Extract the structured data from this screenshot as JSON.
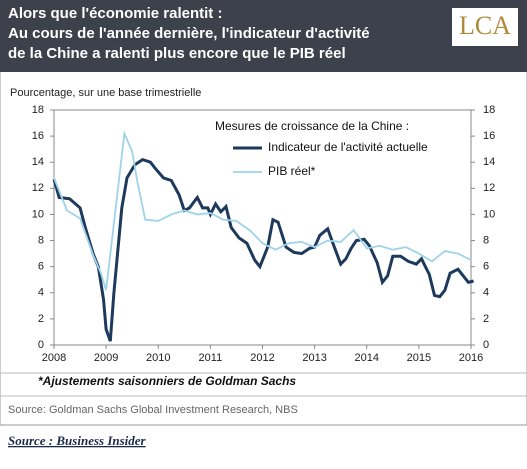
{
  "logo": "LCA",
  "chart_data": {
    "type": "line",
    "title": [
      "Alors que l'économie ralentit :",
      "Au cours de l'année dernière, l'indicateur d'activité",
      "de la Chine a ralenti plus encore que le PIB réel"
    ],
    "subtitle": "Pourcentage, sur une base trimestrielle",
    "legend_title": "Mesures de croissance de la Chine :",
    "footnote": "*Ajustements saisonniers de Goldman Sachs",
    "source": "Source: Goldman Sachs Global Investment Research, NBS",
    "xlim": [
      2008,
      2016
    ],
    "xticks": [
      2008,
      2009,
      2010,
      2011,
      2012,
      2013,
      2014,
      2015,
      2016
    ],
    "ylim": [
      0,
      18
    ],
    "yticks": [
      0,
      2,
      4,
      6,
      8,
      10,
      12,
      14,
      16,
      18
    ],
    "y2lim": [
      0,
      18
    ],
    "y2ticks": [
      0,
      2,
      4,
      6,
      8,
      10,
      12,
      14,
      16,
      18
    ],
    "series": [
      {
        "name": "Indicateur de l'activité actuelle",
        "color": "#1d3a5c",
        "x": [
          2008.0,
          2008.1,
          2008.3,
          2008.5,
          2008.6,
          2008.75,
          2008.85,
          2008.95,
          2009.0,
          2009.08,
          2009.15,
          2009.3,
          2009.4,
          2009.55,
          2009.7,
          2009.85,
          2009.95,
          2010.1,
          2010.25,
          2010.4,
          2010.5,
          2010.6,
          2010.75,
          2010.85,
          2010.95,
          2011.0,
          2011.1,
          2011.2,
          2011.3,
          2011.4,
          2011.55,
          2011.7,
          2011.85,
          2011.95,
          2012.1,
          2012.2,
          2012.3,
          2012.45,
          2012.6,
          2012.75,
          2012.9,
          2013.0,
          2013.1,
          2013.25,
          2013.35,
          2013.5,
          2013.6,
          2013.7,
          2013.8,
          2013.95,
          2014.05,
          2014.2,
          2014.3,
          2014.4,
          2014.5,
          2014.65,
          2014.8,
          2014.95,
          2015.05,
          2015.2,
          2015.3,
          2015.4,
          2015.5,
          2015.6,
          2015.75,
          2015.85,
          2015.95,
          2016.05
        ],
        "values": [
          12.7,
          11.3,
          11.2,
          10.5,
          9.0,
          7.0,
          6.0,
          3.5,
          1.2,
          0.3,
          4.0,
          10.5,
          12.8,
          13.8,
          14.2,
          14.0,
          13.5,
          12.8,
          12.6,
          11.5,
          10.3,
          10.5,
          11.3,
          10.5,
          10.5,
          10.0,
          10.8,
          10.2,
          10.6,
          9.0,
          8.2,
          7.8,
          6.5,
          6.0,
          7.5,
          9.6,
          9.4,
          7.5,
          7.1,
          7.0,
          7.4,
          7.5,
          8.4,
          8.9,
          7.8,
          6.2,
          6.6,
          7.4,
          8.0,
          8.1,
          7.6,
          6.3,
          4.8,
          5.3,
          6.8,
          6.8,
          6.4,
          6.2,
          6.6,
          5.4,
          3.8,
          3.7,
          4.2,
          5.5,
          5.8,
          5.3,
          4.8,
          4.9
        ]
      },
      {
        "name": "PIB réel*",
        "color": "#9fd3ea",
        "x": [
          2008.0,
          2008.25,
          2008.5,
          2008.75,
          2008.9,
          2009.0,
          2009.35,
          2009.5,
          2009.6,
          2009.75,
          2010.0,
          2010.25,
          2010.5,
          2010.75,
          2011.0,
          2011.25,
          2011.5,
          2011.75,
          2012.0,
          2012.25,
          2012.5,
          2012.75,
          2013.0,
          2013.25,
          2013.5,
          2013.75,
          2014.0,
          2014.25,
          2014.5,
          2014.75,
          2015.0,
          2015.25,
          2015.5,
          2015.75,
          2016.0
        ],
        "values": [
          12.8,
          10.3,
          9.7,
          6.9,
          5.5,
          4.2,
          16.2,
          14.8,
          12.5,
          9.6,
          9.5,
          10.0,
          10.3,
          10.0,
          10.1,
          9.6,
          9.5,
          8.8,
          7.8,
          7.3,
          7.8,
          7.9,
          7.5,
          8.0,
          7.9,
          8.8,
          7.4,
          7.6,
          7.3,
          7.5,
          7.0,
          6.4,
          7.2,
          7.0,
          6.5
        ]
      }
    ]
  },
  "credit": "Source : Business Insider"
}
